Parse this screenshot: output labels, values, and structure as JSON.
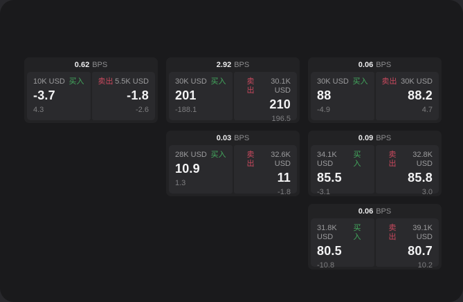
{
  "labels": {
    "buy": "买入",
    "sell": "卖出",
    "bps_unit": "BPS"
  },
  "colors": {
    "outer_background": "#28282c",
    "panel_background": "#1a1a1c",
    "card_background": "#222224",
    "tile_background": "#2a2a2d",
    "buy_green": "#43a95e",
    "sell_red": "#c9495e",
    "value_white": "#f3f3f4",
    "label_gray": "#9c9c9e"
  },
  "cards": [
    {
      "bps": "0.62",
      "buy": {
        "amount": "10K USD",
        "value": "-3.7",
        "delta": "4.3"
      },
      "sell": {
        "amount": "5.5K USD",
        "value": "-1.8",
        "delta": "-2.6"
      }
    },
    {
      "bps": "2.92",
      "buy": {
        "amount": "30K USD",
        "value": "201",
        "delta": "-188.1"
      },
      "sell": {
        "amount": "30.1K USD",
        "value": "210",
        "delta": "196.5"
      }
    },
    {
      "bps": "0.06",
      "buy": {
        "amount": "30K USD",
        "value": "88",
        "delta": "-4.9"
      },
      "sell": {
        "amount": "30K USD",
        "value": "88.2",
        "delta": "4.7"
      }
    },
    {
      "bps": "0.03",
      "buy": {
        "amount": "28K USD",
        "value": "10.9",
        "delta": "1.3"
      },
      "sell": {
        "amount": "32.6K USD",
        "value": "11",
        "delta": "-1.8"
      }
    },
    {
      "bps": "0.09",
      "buy": {
        "amount": "34.1K USD",
        "value": "85.5",
        "delta": "-3.1"
      },
      "sell": {
        "amount": "32.8K USD",
        "value": "85.8",
        "delta": "3.0"
      }
    },
    {
      "bps": "0.06",
      "buy": {
        "amount": "31.8K USD",
        "value": "80.5",
        "delta": "-10.8"
      },
      "sell": {
        "amount": "39.1K USD",
        "value": "80.7",
        "delta": "10.2"
      }
    }
  ]
}
